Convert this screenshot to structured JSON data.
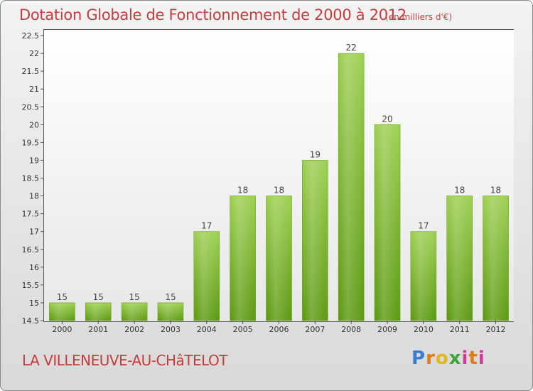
{
  "title": "Dotation Globale de Fonctionnement de 2000 à 2012",
  "unit_note": "(en milliers d'€)",
  "commune": "LA VILLENEUVE-AU-CHâTELOT",
  "logo": {
    "p": "P",
    "r": "r",
    "o": "o",
    "x": "x",
    "i": "i",
    "t": "t",
    "i2": "i"
  },
  "colors": {
    "bar_top": "#9fd055",
    "bar_bottom": "#5e9a14",
    "title": "#c23d3d"
  },
  "chart_data": {
    "type": "bar",
    "title": "Dotation Globale de Fonctionnement de 2000 à 2012",
    "subtitle": "(en milliers d'€)",
    "xlabel": "",
    "ylabel": "",
    "categories": [
      "2000",
      "2001",
      "2002",
      "2003",
      "2004",
      "2005",
      "2006",
      "2007",
      "2008",
      "2009",
      "2010",
      "2011",
      "2012"
    ],
    "values": [
      15,
      15,
      15,
      15,
      17,
      18,
      18,
      19,
      22,
      20,
      17,
      18,
      18
    ],
    "ylim": [
      14.5,
      22.5
    ],
    "yticks": [
      "14.5",
      "15",
      "15.5",
      "16",
      "16.5",
      "17",
      "17.5",
      "18",
      "18.5",
      "19",
      "19.5",
      "20",
      "20.5",
      "21",
      "21.5",
      "22",
      "22.5"
    ],
    "grid": false,
    "legend": "none"
  }
}
